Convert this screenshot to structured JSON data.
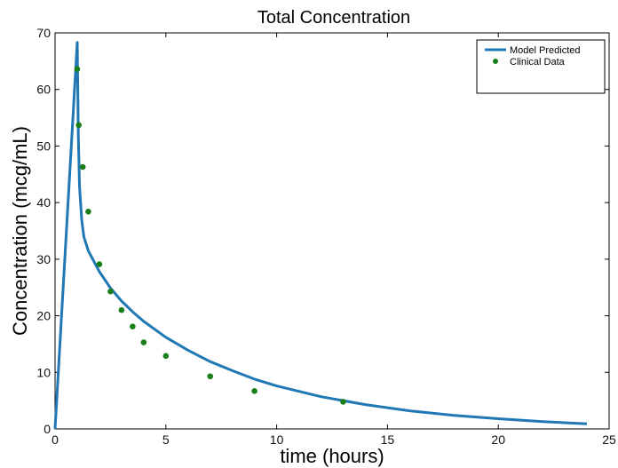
{
  "chart_data": {
    "type": "line",
    "title": "Total Concentration",
    "xlabel": "time (hours)",
    "ylabel": "Concentration (mcg/mL)",
    "xlim": [
      0,
      25
    ],
    "ylim": [
      0,
      70
    ],
    "xticks": [
      0,
      5,
      10,
      15,
      20,
      25
    ],
    "yticks": [
      0,
      10,
      20,
      30,
      40,
      50,
      60,
      70
    ],
    "grid": false,
    "legend_position": "top-right",
    "series": [
      {
        "name": "Model Predicted",
        "kind": "line",
        "color": "#1f77b4",
        "x": [
          0,
          1,
          1.05,
          1.1,
          1.2,
          1.3,
          1.5,
          2,
          2.5,
          3,
          3.5,
          4,
          5,
          6,
          7,
          8,
          9,
          10,
          12,
          14,
          16,
          18,
          20,
          22,
          24
        ],
        "y": [
          0,
          68.3,
          52,
          43,
          37,
          34,
          31.5,
          27.8,
          24.9,
          22.6,
          20.7,
          19,
          16.2,
          13.9,
          11.9,
          10.3,
          8.8,
          7.6,
          5.7,
          4.3,
          3.2,
          2.4,
          1.8,
          1.3,
          0.9
        ]
      },
      {
        "name": "Clinical Data",
        "kind": "scatter",
        "color": "#1a7f1a",
        "x": [
          1,
          1.07,
          1.25,
          1.5,
          2,
          2.5,
          3,
          3.5,
          4,
          5,
          7,
          9,
          13
        ],
        "y": [
          63.6,
          53.7,
          46.3,
          38.4,
          29.1,
          24.3,
          21,
          18.1,
          15.3,
          12.9,
          9.3,
          6.7,
          4.8
        ]
      }
    ]
  }
}
